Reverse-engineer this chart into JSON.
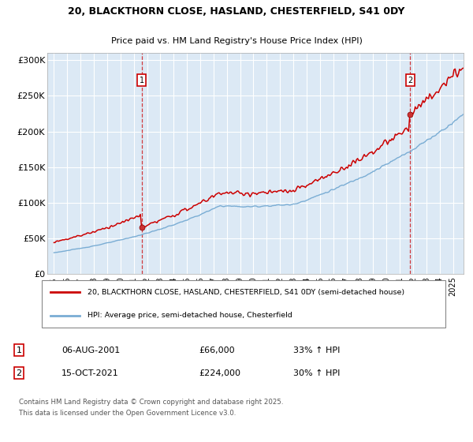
{
  "title_line1": "20, BLACKTHORN CLOSE, HASLAND, CHESTERFIELD, S41 0DY",
  "title_line2": "Price paid vs. HM Land Registry's House Price Index (HPI)",
  "background_color": "#dce9f5",
  "line1_color": "#cc0000",
  "line2_color": "#7aadd4",
  "purchase1_year": 2001.6,
  "purchase1_price": 66000,
  "purchase2_year": 2021.79,
  "purchase2_price": 224000,
  "ylim_min": 0,
  "ylim_max": 310000,
  "xlim_min": 1994.5,
  "xlim_max": 2025.8,
  "yticks": [
    0,
    50000,
    100000,
    150000,
    200000,
    250000,
    300000
  ],
  "ytick_labels": [
    "£0",
    "£50K",
    "£100K",
    "£150K",
    "£200K",
    "£250K",
    "£300K"
  ],
  "legend_line1": "20, BLACKTHORN CLOSE, HASLAND, CHESTERFIELD, S41 0DY (semi-detached house)",
  "legend_line2": "HPI: Average price, semi-detached house, Chesterfield",
  "annotation1_date": "06-AUG-2001",
  "annotation1_price": "£66,000",
  "annotation1_hpi": "33% ↑ HPI",
  "annotation2_date": "15-OCT-2021",
  "annotation2_price": "£224,000",
  "annotation2_hpi": "30% ↑ HPI",
  "footer": "Contains HM Land Registry data © Crown copyright and database right 2025.\nThis data is licensed under the Open Government Licence v3.0."
}
